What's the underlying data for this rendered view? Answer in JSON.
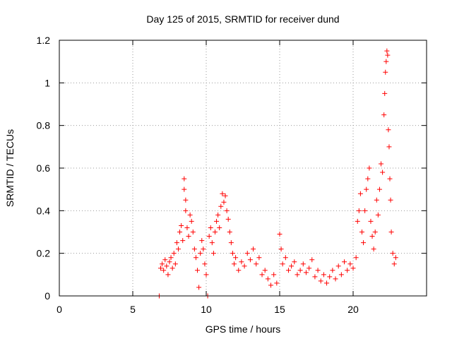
{
  "chart_data": {
    "type": "scatter",
    "title": "Day 125 of 2015, SRMTID for receiver dund",
    "xlabel": "GPS time / hours",
    "ylabel": "SRMTID / TECUs",
    "xlim": [
      0,
      25
    ],
    "ylim": [
      0,
      1.2
    ],
    "xticks": [
      0,
      5,
      10,
      15,
      20
    ],
    "yticks": [
      0,
      0.2,
      0.4,
      0.6,
      0.8,
      1.0,
      1.2
    ],
    "xtick_labels": [
      "0",
      "5",
      "10",
      "15",
      "20"
    ],
    "ytick_labels": [
      "0",
      "0.2",
      "0.4",
      "0.6",
      "0.8",
      "1",
      "1.2"
    ],
    "grid": true,
    "marker": "+",
    "series": [
      {
        "name": "SRMTID",
        "color": "#ff0000",
        "points": [
          [
            6.8,
            0.0
          ],
          [
            6.9,
            0.13
          ],
          [
            7.0,
            0.15
          ],
          [
            7.1,
            0.12
          ],
          [
            7.2,
            0.17
          ],
          [
            7.3,
            0.14
          ],
          [
            7.4,
            0.1
          ],
          [
            7.5,
            0.16
          ],
          [
            7.6,
            0.18
          ],
          [
            7.7,
            0.13
          ],
          [
            7.8,
            0.2
          ],
          [
            7.9,
            0.15
          ],
          [
            8.0,
            0.25
          ],
          [
            8.1,
            0.22
          ],
          [
            8.2,
            0.3
          ],
          [
            8.3,
            0.33
          ],
          [
            8.4,
            0.26
          ],
          [
            8.5,
            0.55
          ],
          [
            8.5,
            0.5
          ],
          [
            8.6,
            0.45
          ],
          [
            8.6,
            0.4
          ],
          [
            8.7,
            0.32
          ],
          [
            8.8,
            0.28
          ],
          [
            8.9,
            0.38
          ],
          [
            9.0,
            0.35
          ],
          [
            9.1,
            0.3
          ],
          [
            9.2,
            0.22
          ],
          [
            9.3,
            0.18
          ],
          [
            9.4,
            0.12
          ],
          [
            9.5,
            0.04
          ],
          [
            9.6,
            0.2
          ],
          [
            9.7,
            0.26
          ],
          [
            9.8,
            0.22
          ],
          [
            9.9,
            0.15
          ],
          [
            10.0,
            0.1
          ],
          [
            10.1,
            0.0
          ],
          [
            10.2,
            0.28
          ],
          [
            10.3,
            0.32
          ],
          [
            10.4,
            0.25
          ],
          [
            10.5,
            0.2
          ],
          [
            10.6,
            0.3
          ],
          [
            10.7,
            0.35
          ],
          [
            10.8,
            0.38
          ],
          [
            10.9,
            0.32
          ],
          [
            11.0,
            0.42
          ],
          [
            11.1,
            0.48
          ],
          [
            11.2,
            0.44
          ],
          [
            11.3,
            0.47
          ],
          [
            11.4,
            0.4
          ],
          [
            11.5,
            0.36
          ],
          [
            11.6,
            0.3
          ],
          [
            11.7,
            0.25
          ],
          [
            11.8,
            0.2
          ],
          [
            11.9,
            0.15
          ],
          [
            12.0,
            0.18
          ],
          [
            12.2,
            0.12
          ],
          [
            12.4,
            0.16
          ],
          [
            12.6,
            0.14
          ],
          [
            12.8,
            0.2
          ],
          [
            13.0,
            0.17
          ],
          [
            13.2,
            0.22
          ],
          [
            13.4,
            0.15
          ],
          [
            13.6,
            0.18
          ],
          [
            13.8,
            0.1
          ],
          [
            14.0,
            0.12
          ],
          [
            14.2,
            0.08
          ],
          [
            14.4,
            0.05
          ],
          [
            14.6,
            0.1
          ],
          [
            14.8,
            0.06
          ],
          [
            15.0,
            0.29
          ],
          [
            15.1,
            0.22
          ],
          [
            15.2,
            0.15
          ],
          [
            15.4,
            0.18
          ],
          [
            15.6,
            0.12
          ],
          [
            15.8,
            0.14
          ],
          [
            16.0,
            0.16
          ],
          [
            16.2,
            0.1
          ],
          [
            16.4,
            0.12
          ],
          [
            16.6,
            0.15
          ],
          [
            16.8,
            0.11
          ],
          [
            17.0,
            0.13
          ],
          [
            17.2,
            0.17
          ],
          [
            17.4,
            0.09
          ],
          [
            17.6,
            0.12
          ],
          [
            17.8,
            0.07
          ],
          [
            18.0,
            0.1
          ],
          [
            18.2,
            0.06
          ],
          [
            18.4,
            0.09
          ],
          [
            18.6,
            0.12
          ],
          [
            18.8,
            0.08
          ],
          [
            19.0,
            0.14
          ],
          [
            19.2,
            0.1
          ],
          [
            19.4,
            0.16
          ],
          [
            19.6,
            0.12
          ],
          [
            19.8,
            0.15
          ],
          [
            20.0,
            0.13
          ],
          [
            20.2,
            0.18
          ],
          [
            20.3,
            0.35
          ],
          [
            20.4,
            0.4
          ],
          [
            20.5,
            0.48
          ],
          [
            20.6,
            0.3
          ],
          [
            20.7,
            0.25
          ],
          [
            20.8,
            0.4
          ],
          [
            20.9,
            0.5
          ],
          [
            21.0,
            0.55
          ],
          [
            21.1,
            0.6
          ],
          [
            21.2,
            0.35
          ],
          [
            21.3,
            0.28
          ],
          [
            21.4,
            0.22
          ],
          [
            21.5,
            0.3
          ],
          [
            21.6,
            0.45
          ],
          [
            21.7,
            0.38
          ],
          [
            21.8,
            0.5
          ],
          [
            21.9,
            0.62
          ],
          [
            22.0,
            0.58
          ],
          [
            22.1,
            0.85
          ],
          [
            22.15,
            0.95
          ],
          [
            22.2,
            1.05
          ],
          [
            22.25,
            1.1
          ],
          [
            22.3,
            1.15
          ],
          [
            22.35,
            1.13
          ],
          [
            22.4,
            0.78
          ],
          [
            22.45,
            0.7
          ],
          [
            22.5,
            0.55
          ],
          [
            22.55,
            0.45
          ],
          [
            22.6,
            0.3
          ],
          [
            22.7,
            0.2
          ],
          [
            22.8,
            0.15
          ],
          [
            22.9,
            0.18
          ]
        ]
      }
    ]
  }
}
